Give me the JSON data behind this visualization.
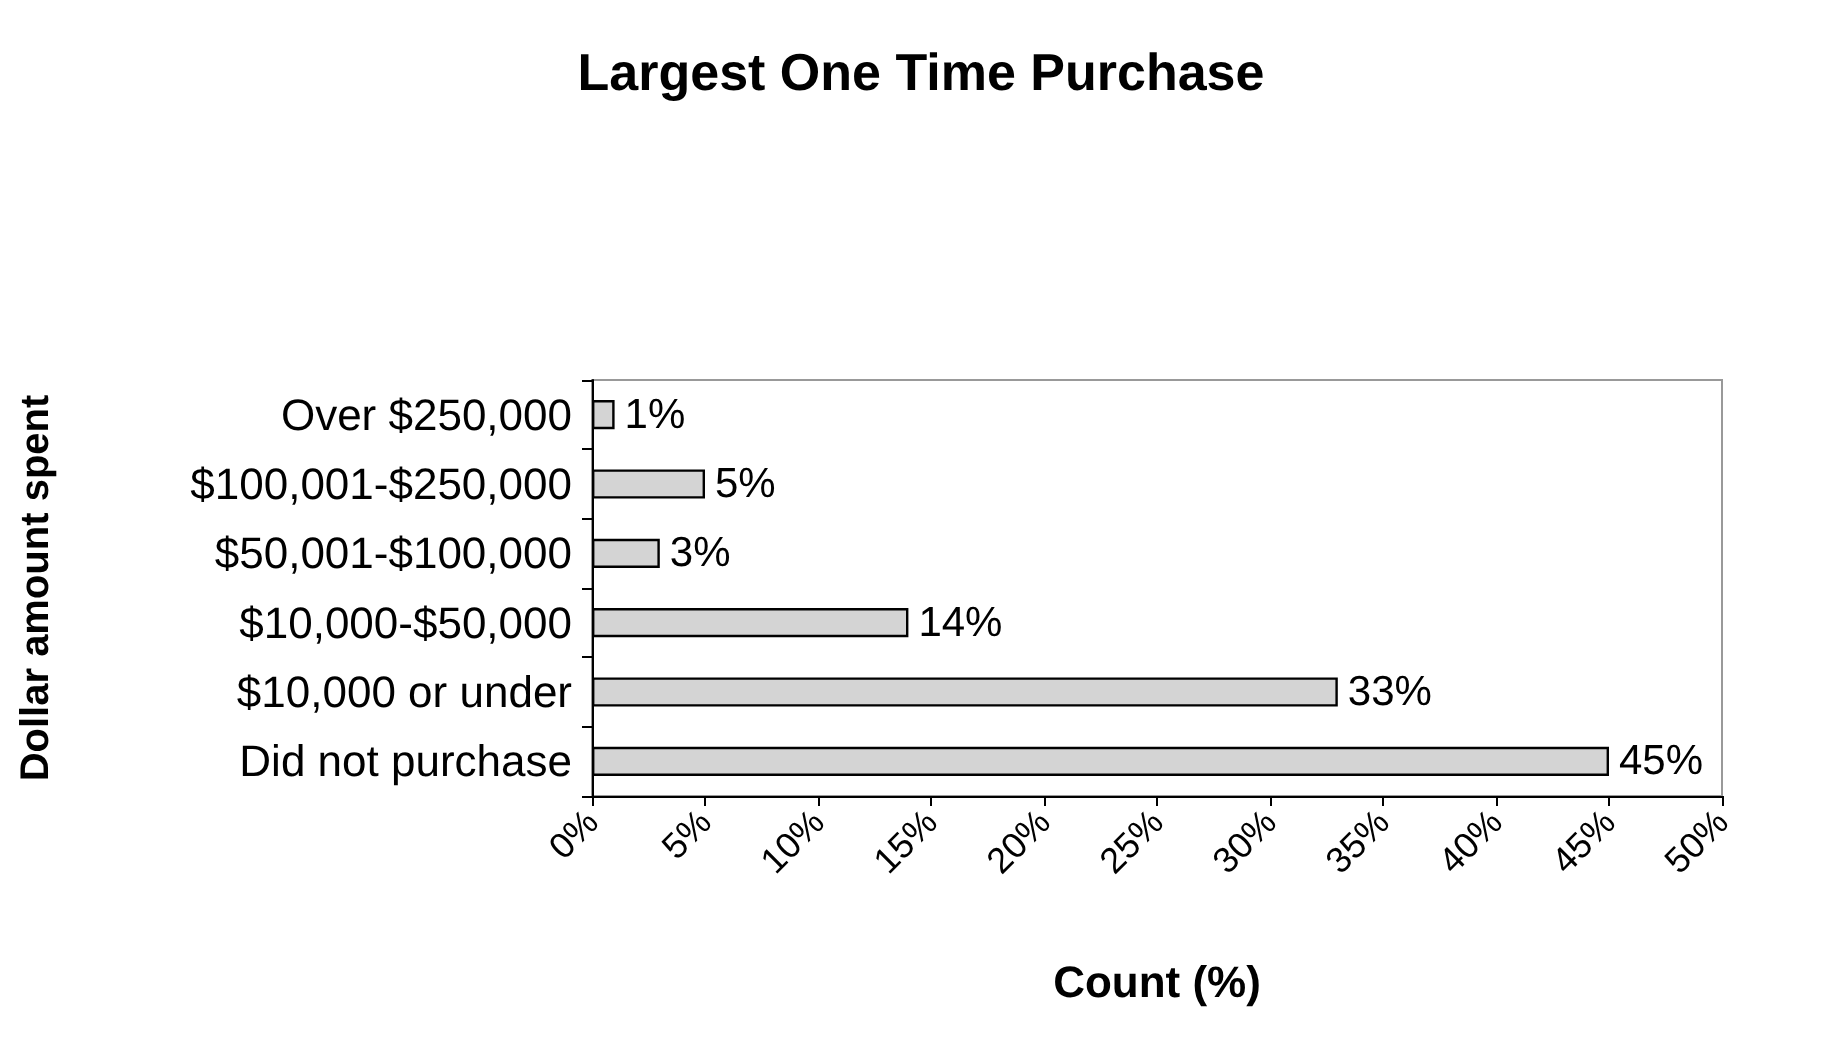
{
  "chart_data": {
    "type": "bar",
    "orientation": "horizontal",
    "title": "Largest One Time Purchase",
    "xlabel": "Count (%)",
    "ylabel": "Dollar amount spent",
    "categories": [
      "Over $250,000",
      "$100,001-$250,000",
      "$50,001-$100,000",
      "$10,000-$50,000",
      "$10,000 or under",
      "Did not purchase"
    ],
    "values": [
      1,
      5,
      3,
      14,
      33,
      45
    ],
    "value_labels": [
      "1%",
      "5%",
      "3%",
      "14%",
      "33%",
      "45%"
    ],
    "color": "#d4d4d4",
    "xlim": [
      0,
      50
    ],
    "xticks": [
      {
        "value": 0,
        "label": "0%"
      },
      {
        "value": 5,
        "label": "5%"
      },
      {
        "value": 10,
        "label": "10%"
      },
      {
        "value": 15,
        "label": "15%"
      },
      {
        "value": 20,
        "label": "20%"
      },
      {
        "value": 25,
        "label": "25%"
      },
      {
        "value": 30,
        "label": "30%"
      },
      {
        "value": 35,
        "label": "35%"
      },
      {
        "value": 40,
        "label": "40%"
      },
      {
        "value": 45,
        "label": "45%"
      },
      {
        "value": 50,
        "label": "50%"
      }
    ],
    "grid": false
  }
}
